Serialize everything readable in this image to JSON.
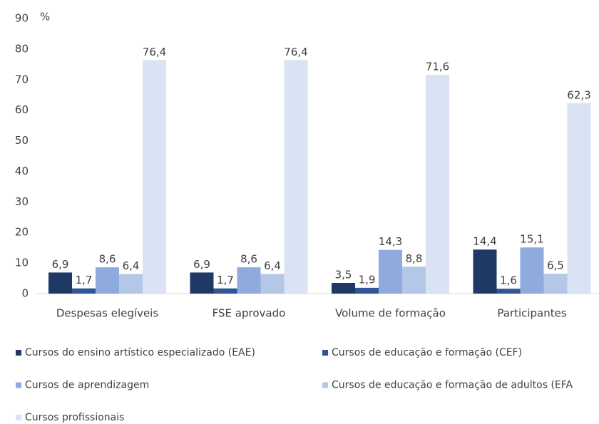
{
  "chart_data": {
    "type": "bar",
    "ylabel": "%",
    "categories": [
      "Despesas elegíveis",
      "FSE aprovado",
      "Volume de formação",
      "Participantes"
    ],
    "series": [
      {
        "name": "Cursos do ensino artístico especializado (EAE)",
        "color": "#1f3864",
        "values": [
          6.9,
          6.9,
          3.5,
          14.4
        ],
        "value_labels": [
          "6,9",
          "6,9",
          "3,5",
          "14,4"
        ]
      },
      {
        "name": "Cursos de educação e formação (CEF)",
        "color": "#2f5597",
        "values": [
          1.7,
          1.7,
          1.9,
          1.6
        ],
        "value_labels": [
          "1,7",
          "1,7",
          "1,9",
          "1,6"
        ]
      },
      {
        "name": "Cursos de aprendizagem",
        "color": "#8faadc",
        "values": [
          8.6,
          8.6,
          14.3,
          15.1
        ],
        "value_labels": [
          "8,6",
          "8,6",
          "14,3",
          "15,1"
        ]
      },
      {
        "name": "Cursos de educação e formação de adultos (EFA",
        "color": "#b4c7e7",
        "values": [
          6.4,
          6.4,
          8.8,
          6.5
        ],
        "value_labels": [
          "6,4",
          "6,4",
          "8,8",
          "6,5"
        ]
      },
      {
        "name": "Cursos profissionais",
        "color": "#dae3f3",
        "values": [
          76.4,
          76.4,
          71.6,
          62.3
        ],
        "value_labels": [
          "76,4",
          "76,4",
          "71,6",
          "62,3"
        ]
      }
    ],
    "ylim": [
      0,
      90
    ],
    "yticks": [
      0,
      10,
      20,
      30,
      40,
      50,
      60,
      70,
      80,
      90
    ],
    "grid": false,
    "legend": "bottom"
  }
}
